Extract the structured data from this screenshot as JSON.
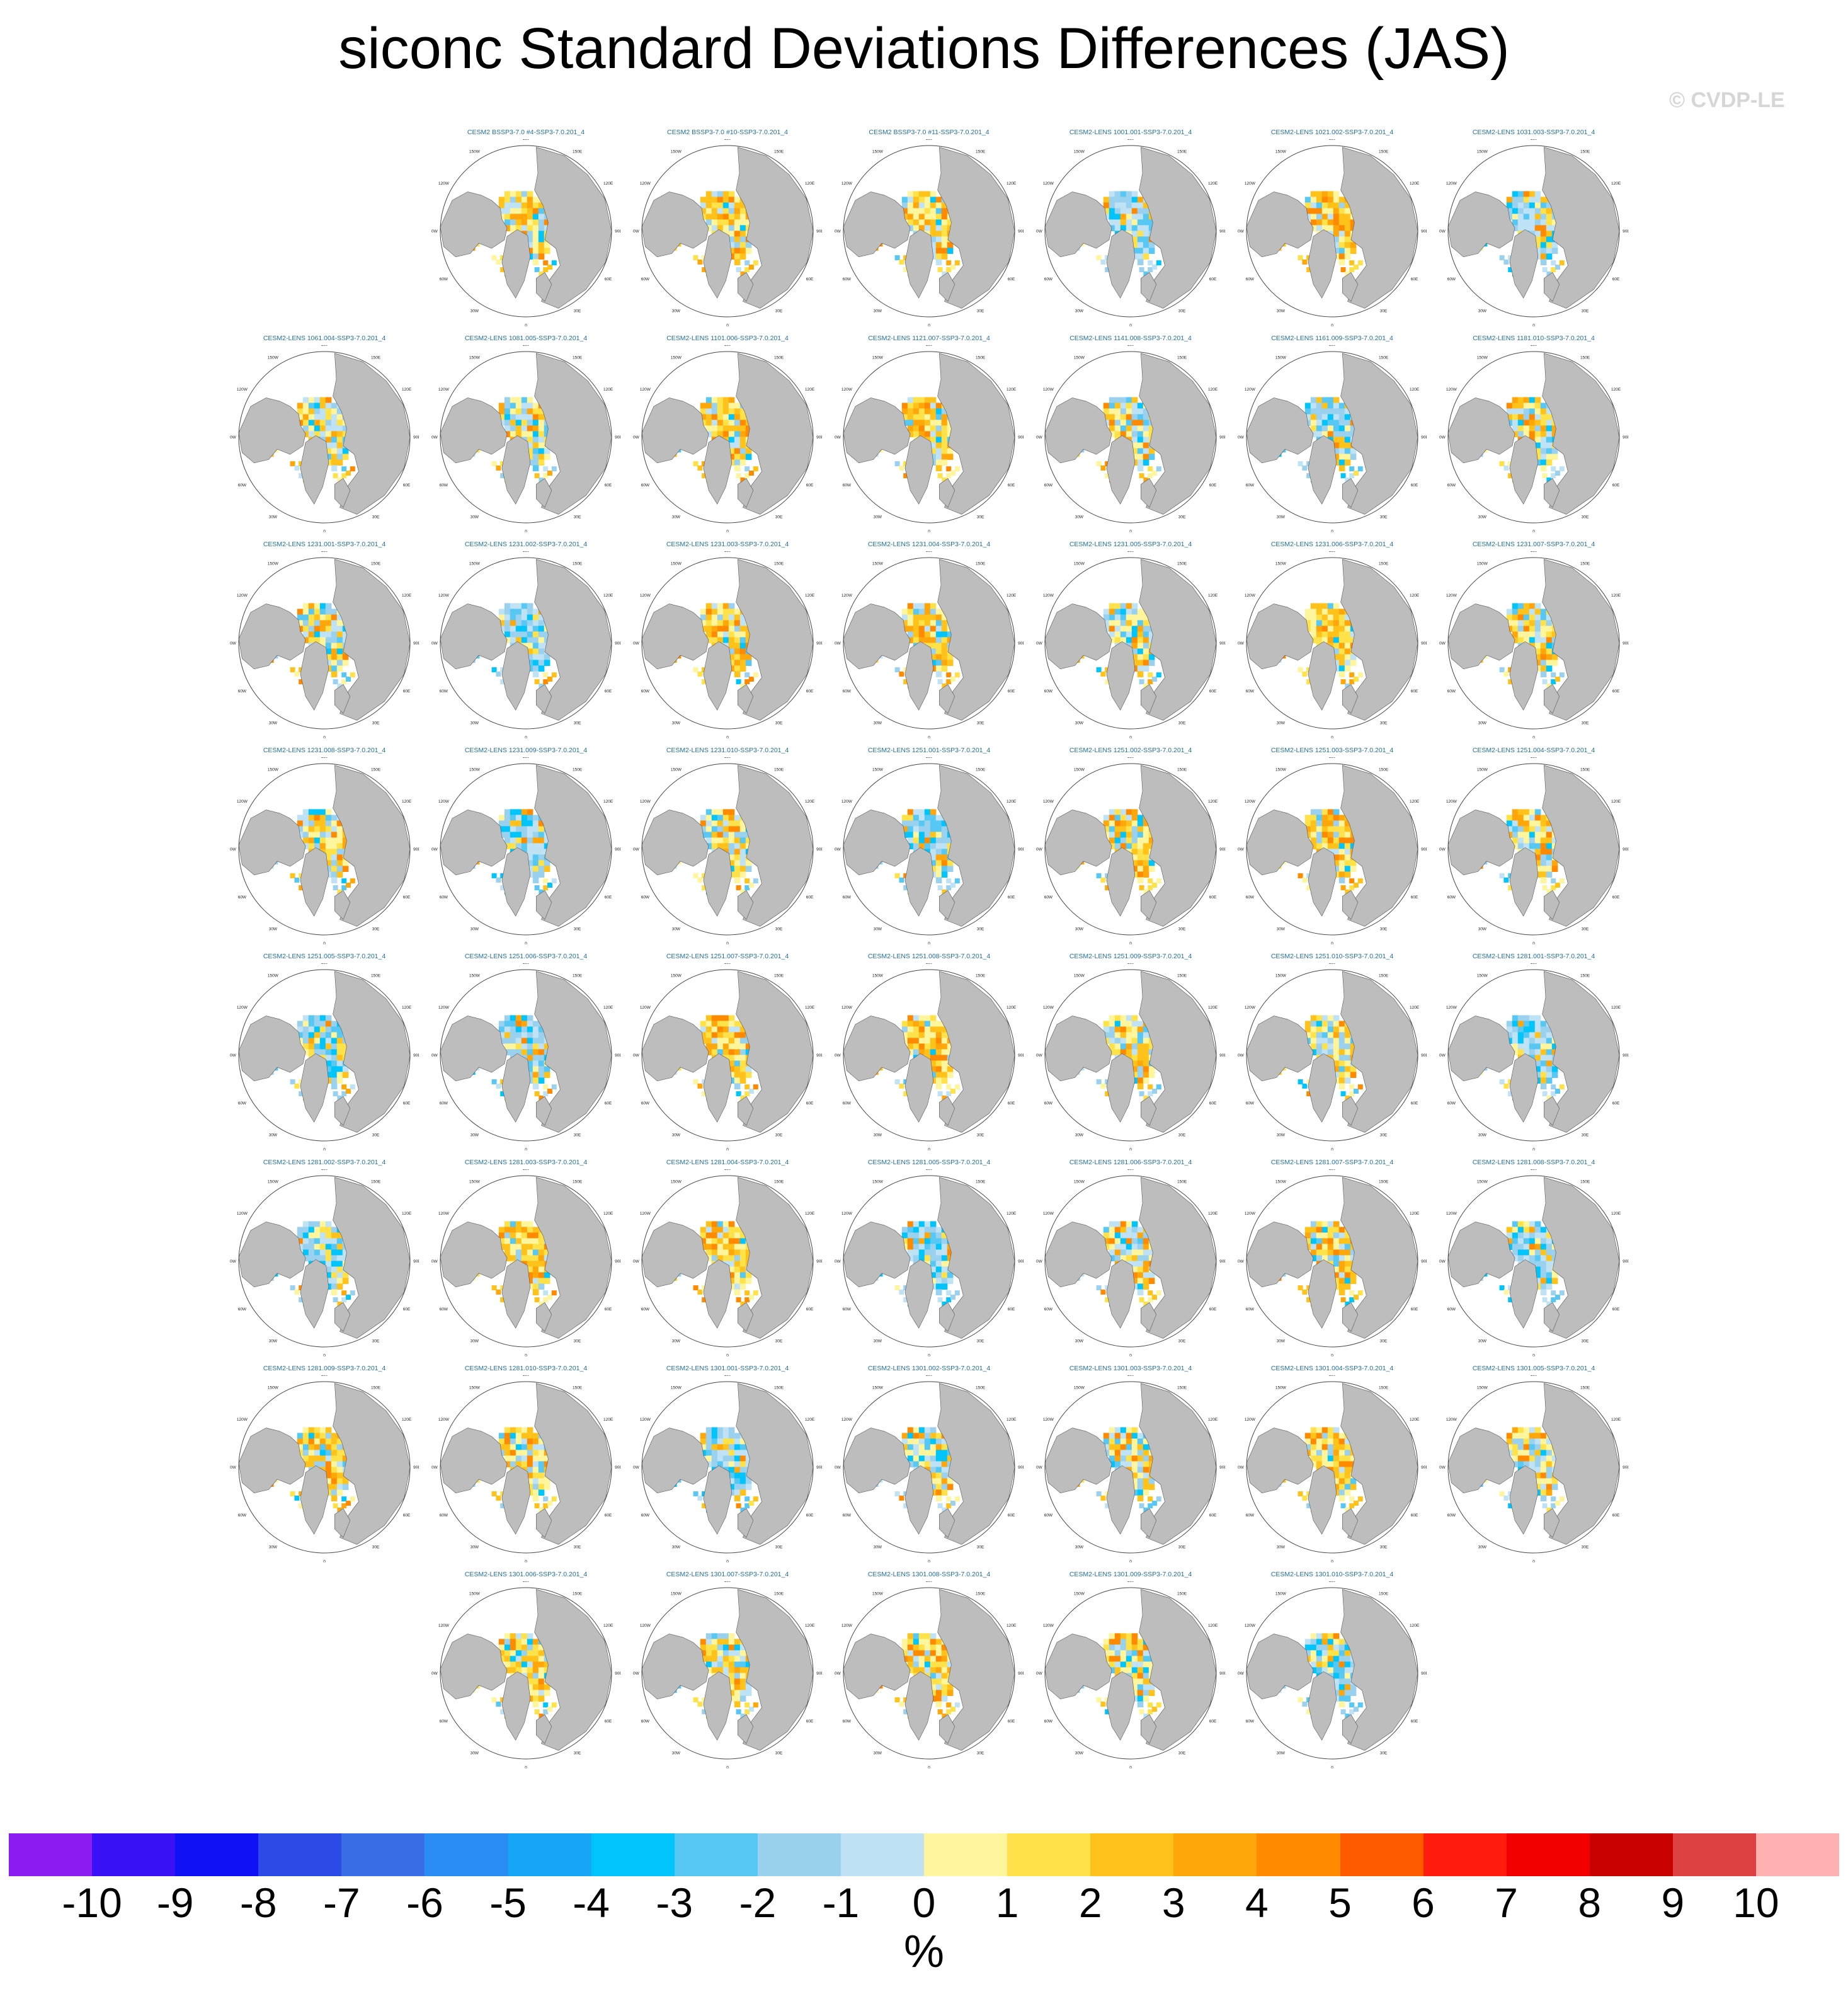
{
  "title": "siconc Standard Deviations Differences (JAS)",
  "watermark": "© CVDP-LE",
  "units": "%",
  "map_labels": {
    "lon_top": "180",
    "lon_bottom": "0",
    "lon_150w": "150W",
    "lon_120w": "120W",
    "lon_90w": "90W",
    "lon_60w": "60W",
    "lon_30w": "30W",
    "lon_150e": "150E",
    "lon_120e": "120E",
    "lon_90e": "90E",
    "lon_60e": "60E",
    "lon_30e": "30E"
  },
  "colors": {
    "land": "#bdbdbd",
    "ocean": "#ffffff",
    "title_text": "#1f6f9e"
  },
  "colorbar": {
    "colors": [
      "#8b1cf2",
      "#3a10f6",
      "#1010f5",
      "#2c4ae6",
      "#3a6ee6",
      "#2a8cf5",
      "#16a6f7",
      "#00c4fa",
      "#56c8f3",
      "#9ad1ee",
      "#bfe2f5",
      "#fff59c",
      "#ffe24a",
      "#ffc21a",
      "#ffa60a",
      "#ff8a00",
      "#ff5a00",
      "#ff1c0c",
      "#f20000",
      "#c80000",
      "#dc4040",
      "#ffb0b0"
    ],
    "ticks": [
      "-10",
      "-9",
      "-8",
      "-7",
      "-6",
      "-5",
      "-4",
      "-3",
      "-2",
      "-1",
      "0",
      "1",
      "2",
      "3",
      "4",
      "5",
      "6",
      "7",
      "8",
      "9",
      "10"
    ]
  },
  "chart_data": {
    "type": "heatmap",
    "title": "siconc Standard Deviations Differences (JAS)",
    "units": "%",
    "levels": [
      -10,
      -9,
      -8,
      -7,
      -6,
      -5,
      -4,
      -3,
      -2,
      -1,
      0,
      1,
      2,
      3,
      4,
      5,
      6,
      7,
      8,
      9,
      10
    ],
    "panels": [
      {
        "row": 0,
        "col": 1,
        "title": "CESM2 BSSP3-7.0 #4-SSP3-7.0.201_4",
        "pattern": "warm"
      },
      {
        "row": 0,
        "col": 2,
        "title": "CESM2 BSSP3-7.0 #10-SSP3-7.0.201_4",
        "pattern": "warm"
      },
      {
        "row": 0,
        "col": 3,
        "title": "CESM2 BSSP3-7.0 #11-SSP3-7.0.201_4",
        "pattern": "warm"
      },
      {
        "row": 0,
        "col": 4,
        "title": "CESM2-LENS 1001.001-SSP3-7.0.201_4",
        "pattern": "cool"
      },
      {
        "row": 0,
        "col": 5,
        "title": "CESM2-LENS 1021.002-SSP3-7.0.201_4",
        "pattern": "warm"
      },
      {
        "row": 0,
        "col": 6,
        "title": "CESM2-LENS 1031.003-SSP3-7.0.201_4",
        "pattern": "cool"
      },
      {
        "row": 1,
        "col": 0,
        "title": "CESM2-LENS 1061.004-SSP3-7.0.201_4",
        "pattern": "mixed"
      },
      {
        "row": 1,
        "col": 1,
        "title": "CESM2-LENS 1081.005-SSP3-7.0.201_4",
        "pattern": "mixed"
      },
      {
        "row": 1,
        "col": 2,
        "title": "CESM2-LENS 1101.006-SSP3-7.0.201_4",
        "pattern": "warm"
      },
      {
        "row": 1,
        "col": 3,
        "title": "CESM2-LENS 1121.007-SSP3-7.0.201_4",
        "pattern": "warm"
      },
      {
        "row": 1,
        "col": 4,
        "title": "CESM2-LENS 1141.008-SSP3-7.0.201_4",
        "pattern": "mixed"
      },
      {
        "row": 1,
        "col": 5,
        "title": "CESM2-LENS 1161.009-SSP3-7.0.201_4",
        "pattern": "cool"
      },
      {
        "row": 1,
        "col": 6,
        "title": "CESM2-LENS 1181.010-SSP3-7.0.201_4",
        "pattern": "mixed"
      },
      {
        "row": 2,
        "col": 0,
        "title": "CESM2-LENS 1231.001-SSP3-7.0.201_4",
        "pattern": "mixed"
      },
      {
        "row": 2,
        "col": 1,
        "title": "CESM2-LENS 1231.002-SSP3-7.0.201_4",
        "pattern": "cool"
      },
      {
        "row": 2,
        "col": 2,
        "title": "CESM2-LENS 1231.003-SSP3-7.0.201_4",
        "pattern": "warm"
      },
      {
        "row": 2,
        "col": 3,
        "title": "CESM2-LENS 1231.004-SSP3-7.0.201_4",
        "pattern": "warm"
      },
      {
        "row": 2,
        "col": 4,
        "title": "CESM2-LENS 1231.005-SSP3-7.0.201_4",
        "pattern": "mixed"
      },
      {
        "row": 2,
        "col": 5,
        "title": "CESM2-LENS 1231.006-SSP3-7.0.201_4",
        "pattern": "warm"
      },
      {
        "row": 2,
        "col": 6,
        "title": "CESM2-LENS 1231.007-SSP3-7.0.201_4",
        "pattern": "mixed"
      },
      {
        "row": 3,
        "col": 0,
        "title": "CESM2-LENS 1231.008-SSP3-7.0.201_4",
        "pattern": "mixed"
      },
      {
        "row": 3,
        "col": 1,
        "title": "CESM2-LENS 1231.009-SSP3-7.0.201_4",
        "pattern": "cool"
      },
      {
        "row": 3,
        "col": 2,
        "title": "CESM2-LENS 1231.010-SSP3-7.0.201_4",
        "pattern": "mixed"
      },
      {
        "row": 3,
        "col": 3,
        "title": "CESM2-LENS 1251.001-SSP3-7.0.201_4",
        "pattern": "cool"
      },
      {
        "row": 3,
        "col": 4,
        "title": "CESM2-LENS 1251.002-SSP3-7.0.201_4",
        "pattern": "warm"
      },
      {
        "row": 3,
        "col": 5,
        "title": "CESM2-LENS 1251.003-SSP3-7.0.201_4",
        "pattern": "warm"
      },
      {
        "row": 3,
        "col": 6,
        "title": "CESM2-LENS 1251.004-SSP3-7.0.201_4",
        "pattern": "mixed"
      },
      {
        "row": 4,
        "col": 0,
        "title": "CESM2-LENS 1251.005-SSP3-7.0.201_4",
        "pattern": "cool"
      },
      {
        "row": 4,
        "col": 1,
        "title": "CESM2-LENS 1251.006-SSP3-7.0.201_4",
        "pattern": "cool"
      },
      {
        "row": 4,
        "col": 2,
        "title": "CESM2-LENS 1251.007-SSP3-7.0.201_4",
        "pattern": "warm"
      },
      {
        "row": 4,
        "col": 3,
        "title": "CESM2-LENS 1251.008-SSP3-7.0.201_4",
        "pattern": "warm"
      },
      {
        "row": 4,
        "col": 4,
        "title": "CESM2-LENS 1251.009-SSP3-7.0.201_4",
        "pattern": "mixed"
      },
      {
        "row": 4,
        "col": 5,
        "title": "CESM2-LENS 1251.010-SSP3-7.0.201_4",
        "pattern": "mixed"
      },
      {
        "row": 4,
        "col": 6,
        "title": "CESM2-LENS 1281.001-SSP3-7.0.201_4",
        "pattern": "cool"
      },
      {
        "row": 5,
        "col": 0,
        "title": "CESM2-LENS 1281.002-SSP3-7.0.201_4",
        "pattern": "cool"
      },
      {
        "row": 5,
        "col": 1,
        "title": "CESM2-LENS 1281.003-SSP3-7.0.201_4",
        "pattern": "warm"
      },
      {
        "row": 5,
        "col": 2,
        "title": "CESM2-LENS 1281.004-SSP3-7.0.201_4",
        "pattern": "warm"
      },
      {
        "row": 5,
        "col": 3,
        "title": "CESM2-LENS 1281.005-SSP3-7.0.201_4",
        "pattern": "cool"
      },
      {
        "row": 5,
        "col": 4,
        "title": "CESM2-LENS 1281.006-SSP3-7.0.201_4",
        "pattern": "mixed"
      },
      {
        "row": 5,
        "col": 5,
        "title": "CESM2-LENS 1281.007-SSP3-7.0.201_4",
        "pattern": "warm"
      },
      {
        "row": 5,
        "col": 6,
        "title": "CESM2-LENS 1281.008-SSP3-7.0.201_4",
        "pattern": "cool"
      },
      {
        "row": 6,
        "col": 0,
        "title": "CESM2-LENS 1281.009-SSP3-7.0.201_4",
        "pattern": "warm"
      },
      {
        "row": 6,
        "col": 1,
        "title": "CESM2-LENS 1281.010-SSP3-7.0.201_4",
        "pattern": "warm"
      },
      {
        "row": 6,
        "col": 2,
        "title": "CESM2-LENS 1301.001-SSP3-7.0.201_4",
        "pattern": "cool"
      },
      {
        "row": 6,
        "col": 3,
        "title": "CESM2-LENS 1301.002-SSP3-7.0.201_4",
        "pattern": "mixed"
      },
      {
        "row": 6,
        "col": 4,
        "title": "CESM2-LENS 1301.003-SSP3-7.0.201_4",
        "pattern": "mixed"
      },
      {
        "row": 6,
        "col": 5,
        "title": "CESM2-LENS 1301.004-SSP3-7.0.201_4",
        "pattern": "warm"
      },
      {
        "row": 6,
        "col": 6,
        "title": "CESM2-LENS 1301.005-SSP3-7.0.201_4",
        "pattern": "mixed"
      },
      {
        "row": 7,
        "col": 1,
        "title": "CESM2-LENS 1301.006-SSP3-7.0.201_4",
        "pattern": "warm"
      },
      {
        "row": 7,
        "col": 2,
        "title": "CESM2-LENS 1301.007-SSP3-7.0.201_4",
        "pattern": "mixed"
      },
      {
        "row": 7,
        "col": 3,
        "title": "CESM2-LENS 1301.008-SSP3-7.0.201_4",
        "pattern": "warm"
      },
      {
        "row": 7,
        "col": 4,
        "title": "CESM2-LENS 1301.009-SSP3-7.0.201_4",
        "pattern": "mixed"
      },
      {
        "row": 7,
        "col": 5,
        "title": "CESM2-LENS 1301.010-SSP3-7.0.201_4",
        "pattern": "cool"
      }
    ]
  }
}
